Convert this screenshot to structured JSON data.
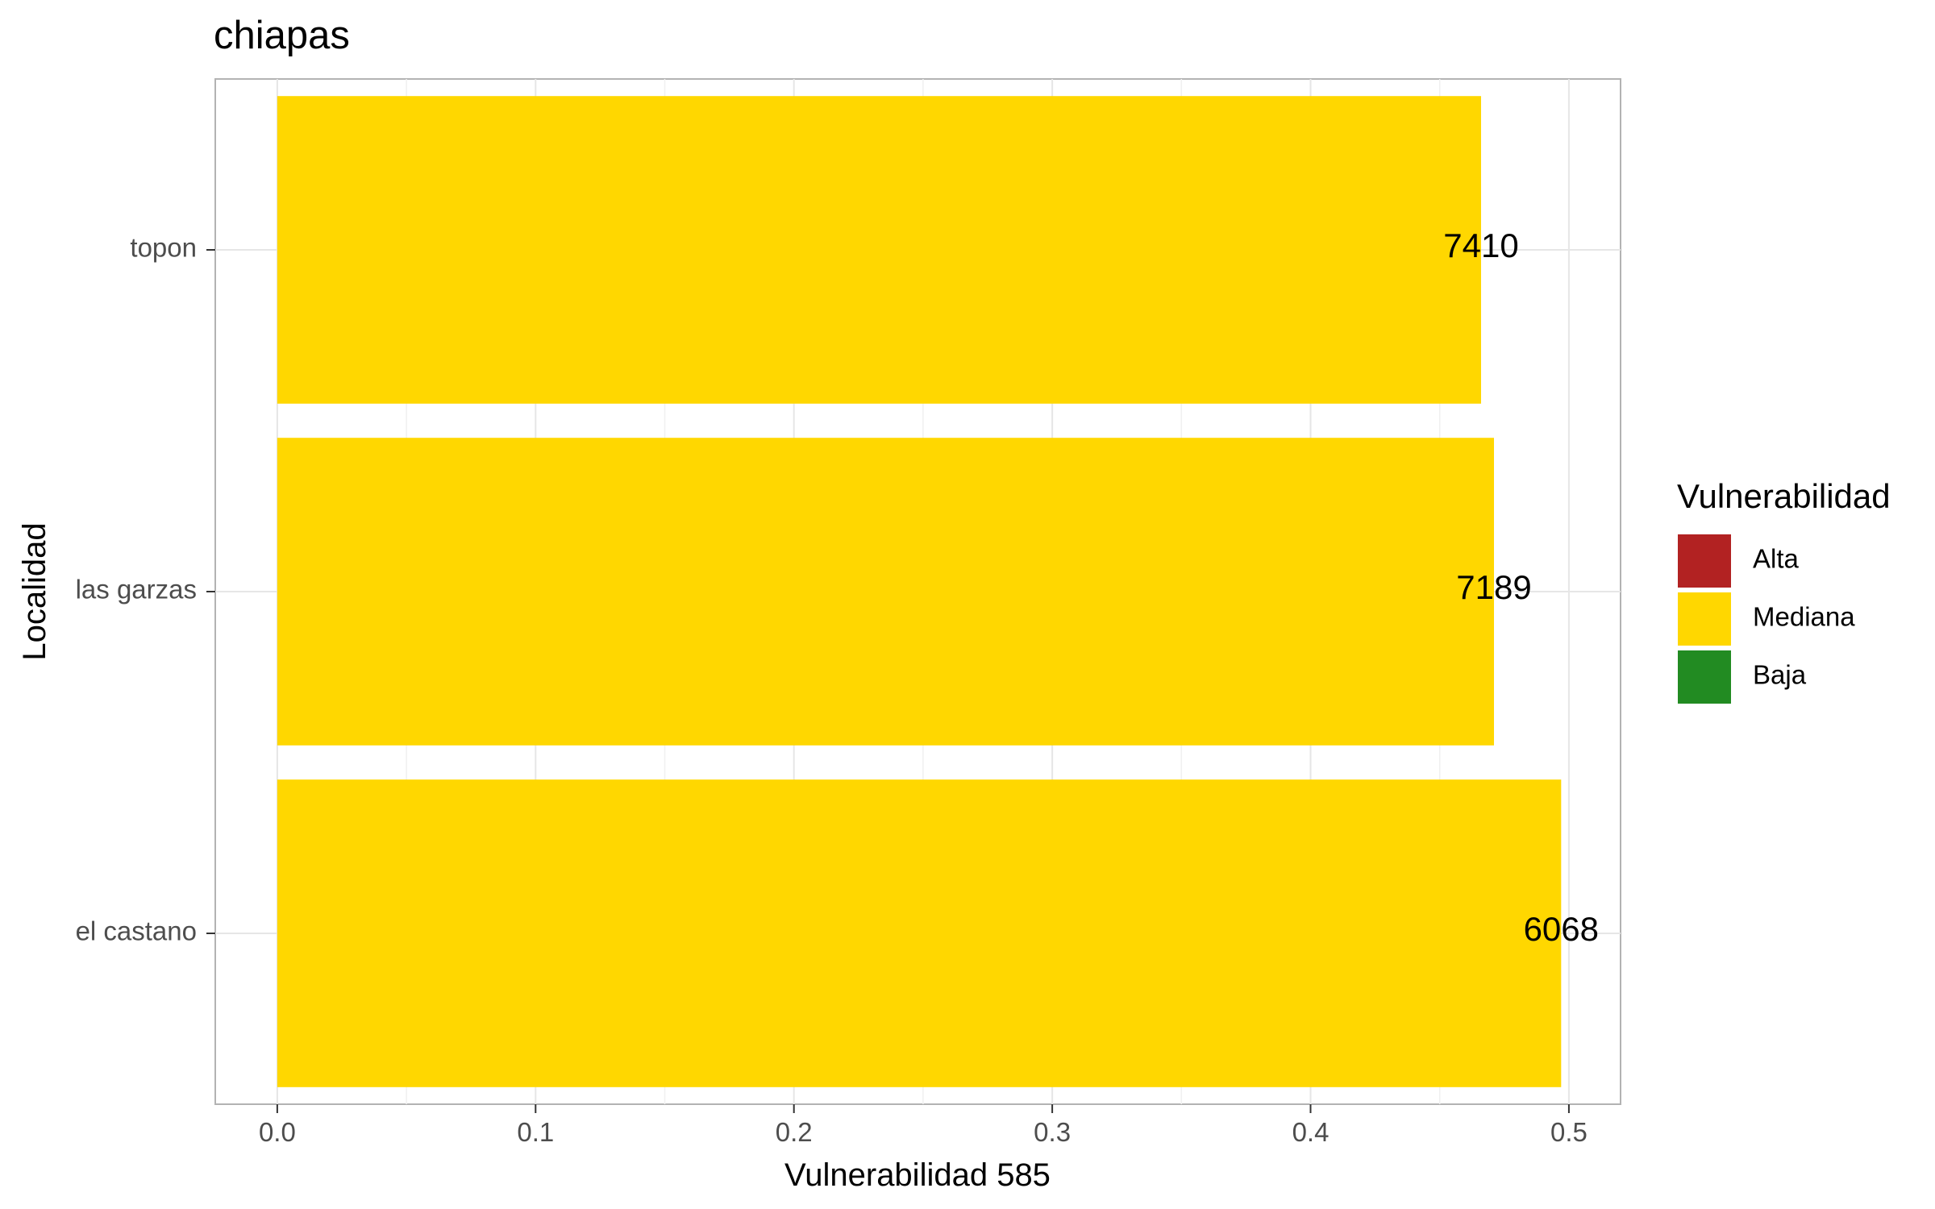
{
  "chart_data": {
    "type": "bar",
    "orientation": "horizontal",
    "title": "chiapas",
    "xlabel": "Vulnerabilidad 585",
    "ylabel": "Localidad",
    "categories": [
      "topon",
      "las garzas",
      "el castano"
    ],
    "values": [
      0.466,
      0.471,
      0.497
    ],
    "data_labels": [
      "7410",
      "7189",
      "6068"
    ],
    "bar_color": "#FFD700",
    "xlim": [
      -0.024,
      0.52
    ],
    "x_ticks": [
      0.0,
      0.1,
      0.2,
      0.3,
      0.4,
      0.5
    ],
    "x_tick_labels": [
      "0.0",
      "0.1",
      "0.2",
      "0.3",
      "0.4",
      "0.5"
    ],
    "grid": true,
    "legend": {
      "title": "Vulnerabilidad",
      "position": "right",
      "items": [
        {
          "label": "Alta",
          "color": "#B22222"
        },
        {
          "label": "Mediana",
          "color": "#FFD700"
        },
        {
          "label": "Baja",
          "color": "#228B22"
        }
      ]
    }
  }
}
